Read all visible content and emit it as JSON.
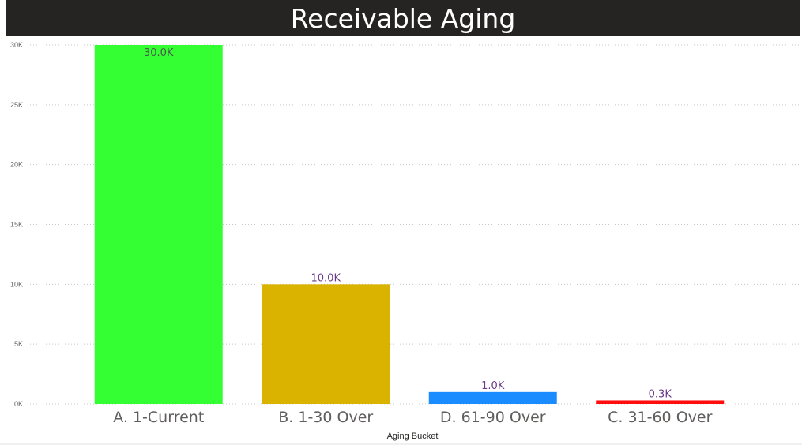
{
  "chart_data": {
    "type": "bar",
    "title": "Receivable Aging",
    "xlabel": "Aging Bucket",
    "ylabel": "",
    "ylim": [
      0,
      30000
    ],
    "yticks": [
      0,
      5000,
      10000,
      15000,
      20000,
      25000,
      30000
    ],
    "ytick_labels": [
      "0K",
      "5K",
      "10K",
      "15K",
      "20K",
      "25K",
      "30K"
    ],
    "grid": true,
    "categories": [
      "A. 1-Current",
      "B. 1-30 Over",
      "D. 61-90 Over",
      "C. 31-60 Over"
    ],
    "values": [
      30000,
      10000,
      1000,
      300
    ],
    "data_labels": [
      "30.0K",
      "10.0K",
      "1.0K",
      "0.3K"
    ],
    "colors": [
      "#33ff33",
      "#d9b300",
      "#1a8cff",
      "#ff0d0d"
    ],
    "label_color": "#6b3a8a",
    "label_color_inside": "#4d5a4d"
  }
}
